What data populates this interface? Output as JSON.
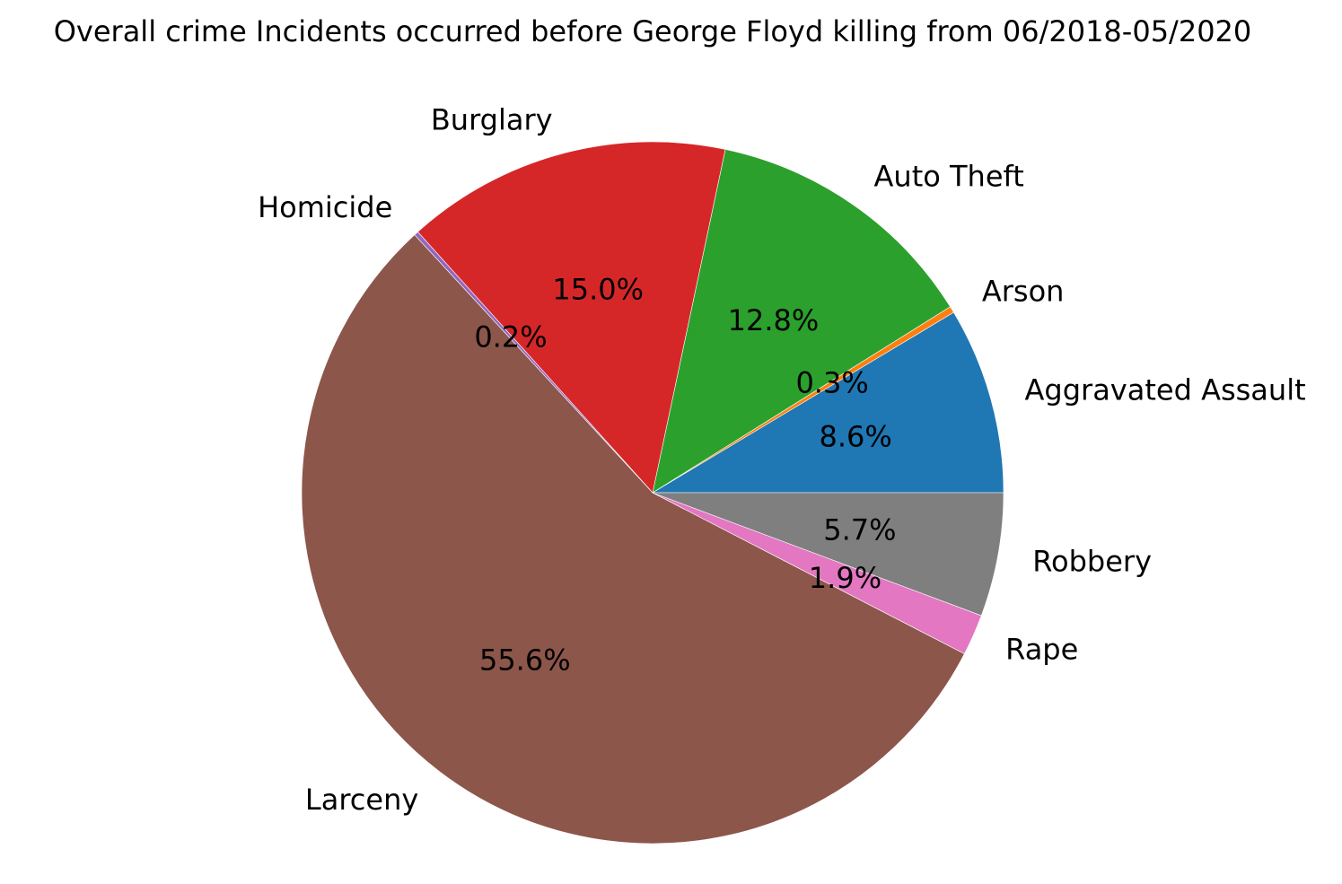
{
  "chart_data": {
    "type": "pie",
    "title": "Overall crime Incidents occurred before George Floyd killing from 06/2018-05/2020",
    "start_angle_deg": 0,
    "direction": "counterclockwise",
    "slices": [
      {
        "label": "Aggravated Assault",
        "value": 8.6,
        "pct_label": "8.6%",
        "color": "#1f77b4"
      },
      {
        "label": "Arson",
        "value": 0.3,
        "pct_label": "0.3%",
        "color": "#ff7f0e"
      },
      {
        "label": "Auto Theft",
        "value": 12.8,
        "pct_label": "12.8%",
        "color": "#2ca02c"
      },
      {
        "label": "Burglary",
        "value": 15.0,
        "pct_label": "15.0%",
        "color": "#d62728"
      },
      {
        "label": "Homicide",
        "value": 0.2,
        "pct_label": "0.2%",
        "color": "#9467bd"
      },
      {
        "label": "Larceny",
        "value": 55.6,
        "pct_label": "55.6%",
        "color": "#8c564b"
      },
      {
        "label": "Rape",
        "value": 1.9,
        "pct_label": "1.9%",
        "color": "#e377c2"
      },
      {
        "label": "Robbery",
        "value": 5.7,
        "pct_label": "5.7%",
        "color": "#7f7f7f"
      }
    ]
  }
}
